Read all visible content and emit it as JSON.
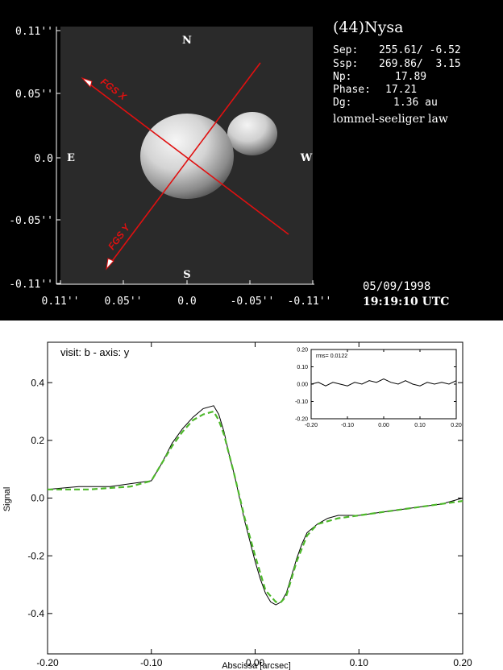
{
  "top_panel": {
    "object": "(44)Nysa",
    "info": [
      {
        "label": "Sep:",
        "value": "255.61/ -6.52"
      },
      {
        "label": "Ssp:",
        "value": "269.86/  3.15"
      },
      {
        "label": "Np:",
        "value": "17.89"
      },
      {
        "label": "Phase:",
        "value": "17.21"
      },
      {
        "label": "Dg:",
        "value": "1.36 au"
      }
    ],
    "law": "lommel-seeliger law",
    "date": "05/09/1998",
    "time": "19:19:10 UTC",
    "compass": {
      "n": "N",
      "s": "S",
      "e": "E",
      "w": "W"
    },
    "y_ticks": [
      "0.11''",
      "0.05''",
      "0.0",
      "-0.05''",
      "-0.11''"
    ],
    "x_ticks": [
      "0.11''",
      "0.05''",
      "0.0",
      "-0.05''",
      "-0.11''"
    ],
    "fgs_x_label": "FGS X",
    "fgs_y_label": "FGS Y",
    "colors": {
      "fgs_axes": "#e01010",
      "background": "#000000",
      "text": "#ffffff"
    }
  },
  "bottom_panel": {
    "title": "visit: b - axis: y",
    "xlabel": "Abscissa [arcsec]",
    "ylabel": "Signal",
    "inset_label": "rms= 0.0122"
  },
  "chart_data": [
    {
      "type": "line",
      "xlim": [
        -0.2,
        0.2
      ],
      "ylim": [
        -0.54,
        0.54
      ],
      "x_ticks": [
        "-0.20",
        "-0.10",
        "0.00",
        "0.10",
        "0.20"
      ],
      "y_ticks": [
        "0.4",
        "0.2",
        "0.0",
        "-0.2",
        "-0.4"
      ],
      "series": [
        {
          "style": "solid-black",
          "x": [
            -0.2,
            -0.17,
            -0.14,
            -0.12,
            -0.1,
            -0.09,
            -0.08,
            -0.07,
            -0.06,
            -0.05,
            -0.04,
            -0.035,
            -0.03,
            -0.025,
            -0.02,
            -0.015,
            -0.01,
            -0.005,
            0.0,
            0.005,
            0.01,
            0.015,
            0.02,
            0.025,
            0.03,
            0.035,
            0.04,
            0.045,
            0.05,
            0.06,
            0.07,
            0.08,
            0.1,
            0.12,
            0.14,
            0.16,
            0.18,
            0.2
          ],
          "y": [
            0.03,
            0.04,
            0.04,
            0.05,
            0.06,
            0.12,
            0.19,
            0.24,
            0.28,
            0.31,
            0.32,
            0.29,
            0.23,
            0.15,
            0.08,
            0.0,
            -0.08,
            -0.15,
            -0.22,
            -0.28,
            -0.33,
            -0.36,
            -0.37,
            -0.36,
            -0.33,
            -0.27,
            -0.21,
            -0.16,
            -0.12,
            -0.09,
            -0.07,
            -0.06,
            -0.06,
            -0.05,
            -0.04,
            -0.03,
            -0.02,
            0.0
          ]
        },
        {
          "style": "dashed-green",
          "color": "#4db82a",
          "x": [
            -0.2,
            -0.16,
            -0.12,
            -0.1,
            -0.09,
            -0.08,
            -0.07,
            -0.06,
            -0.05,
            -0.04,
            -0.035,
            -0.03,
            -0.02,
            -0.01,
            0.0,
            0.01,
            0.02,
            0.025,
            0.03,
            0.04,
            0.05,
            0.06,
            0.08,
            0.1,
            0.12,
            0.14,
            0.16,
            0.18,
            0.2
          ],
          "y": [
            0.03,
            0.03,
            0.04,
            0.06,
            0.12,
            0.18,
            0.23,
            0.27,
            0.29,
            0.3,
            0.27,
            0.22,
            0.08,
            -0.07,
            -0.2,
            -0.32,
            -0.36,
            -0.36,
            -0.34,
            -0.22,
            -0.13,
            -0.09,
            -0.07,
            -0.06,
            -0.05,
            -0.04,
            -0.03,
            -0.02,
            -0.01
          ]
        }
      ]
    },
    {
      "type": "line",
      "title": "rms= 0.0122",
      "xlim": [
        -0.2,
        0.2
      ],
      "ylim": [
        -0.2,
        0.2
      ],
      "x_ticks": [
        "-0.20",
        "-0.10",
        "0.00",
        "0.10",
        "0.20"
      ],
      "y_ticks": [
        "0.20",
        "0.10",
        "0.00",
        "-0.10",
        "-0.20"
      ],
      "series": [
        {
          "style": "solid-black",
          "x": [
            -0.2,
            -0.18,
            -0.16,
            -0.14,
            -0.12,
            -0.1,
            -0.08,
            -0.06,
            -0.04,
            -0.02,
            0.0,
            0.02,
            0.04,
            0.06,
            0.08,
            0.1,
            0.12,
            0.14,
            0.16,
            0.18,
            0.2
          ],
          "y": [
            0.0,
            0.01,
            -0.01,
            0.01,
            0.0,
            -0.01,
            0.01,
            0.0,
            0.02,
            0.01,
            0.03,
            0.01,
            0.0,
            0.02,
            0.0,
            -0.01,
            0.01,
            0.0,
            0.01,
            0.0,
            0.02
          ]
        }
      ]
    }
  ]
}
